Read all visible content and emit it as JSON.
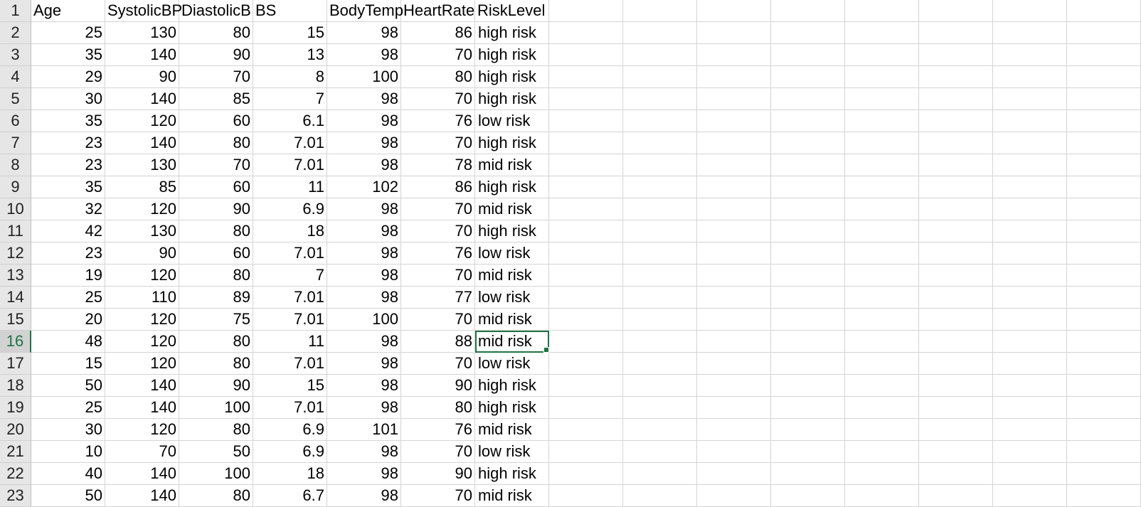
{
  "headers": [
    "Age",
    "SystolicBP",
    "DiastolicB",
    "BS",
    "BodyTemp",
    "HeartRate",
    "RiskLevel"
  ],
  "header_row_number": "1",
  "selected_row_index": 14,
  "rows": [
    {
      "num": "2",
      "cells": [
        "25",
        "130",
        "80",
        "15",
        "98",
        "86",
        "high risk"
      ]
    },
    {
      "num": "3",
      "cells": [
        "35",
        "140",
        "90",
        "13",
        "98",
        "70",
        "high risk"
      ]
    },
    {
      "num": "4",
      "cells": [
        "29",
        "90",
        "70",
        "8",
        "100",
        "80",
        "high risk"
      ]
    },
    {
      "num": "5",
      "cells": [
        "30",
        "140",
        "85",
        "7",
        "98",
        "70",
        "high risk"
      ]
    },
    {
      "num": "6",
      "cells": [
        "35",
        "120",
        "60",
        "6.1",
        "98",
        "76",
        "low risk"
      ]
    },
    {
      "num": "7",
      "cells": [
        "23",
        "140",
        "80",
        "7.01",
        "98",
        "70",
        "high risk"
      ]
    },
    {
      "num": "8",
      "cells": [
        "23",
        "130",
        "70",
        "7.01",
        "98",
        "78",
        "mid risk"
      ]
    },
    {
      "num": "9",
      "cells": [
        "35",
        "85",
        "60",
        "11",
        "102",
        "86",
        "high risk"
      ]
    },
    {
      "num": "10",
      "cells": [
        "32",
        "120",
        "90",
        "6.9",
        "98",
        "70",
        "mid risk"
      ]
    },
    {
      "num": "11",
      "cells": [
        "42",
        "130",
        "80",
        "18",
        "98",
        "70",
        "high risk"
      ]
    },
    {
      "num": "12",
      "cells": [
        "23",
        "90",
        "60",
        "7.01",
        "98",
        "76",
        "low risk"
      ]
    },
    {
      "num": "13",
      "cells": [
        "19",
        "120",
        "80",
        "7",
        "98",
        "70",
        "mid risk"
      ]
    },
    {
      "num": "14",
      "cells": [
        "25",
        "110",
        "89",
        "7.01",
        "98",
        "77",
        "low risk"
      ]
    },
    {
      "num": "15",
      "cells": [
        "20",
        "120",
        "75",
        "7.01",
        "100",
        "70",
        "mid risk"
      ]
    },
    {
      "num": "16",
      "cells": [
        "48",
        "120",
        "80",
        "11",
        "98",
        "88",
        "mid risk"
      ]
    },
    {
      "num": "17",
      "cells": [
        "15",
        "120",
        "80",
        "7.01",
        "98",
        "70",
        "low risk"
      ]
    },
    {
      "num": "18",
      "cells": [
        "50",
        "140",
        "90",
        "15",
        "98",
        "90",
        "high risk"
      ]
    },
    {
      "num": "19",
      "cells": [
        "25",
        "140",
        "100",
        "7.01",
        "98",
        "80",
        "high risk"
      ]
    },
    {
      "num": "20",
      "cells": [
        "30",
        "120",
        "80",
        "6.9",
        "101",
        "76",
        "mid risk"
      ]
    },
    {
      "num": "21",
      "cells": [
        "10",
        "70",
        "50",
        "6.9",
        "98",
        "70",
        "low risk"
      ]
    },
    {
      "num": "22",
      "cells": [
        "40",
        "140",
        "100",
        "18",
        "98",
        "90",
        "high risk"
      ]
    },
    {
      "num": "23",
      "cells": [
        "50",
        "140",
        "80",
        "6.7",
        "98",
        "70",
        "mid risk"
      ]
    }
  ],
  "colors": {
    "selection": "#217346",
    "gridline": "#d4d4d4",
    "row_header_bg": "#e6e6e6"
  }
}
